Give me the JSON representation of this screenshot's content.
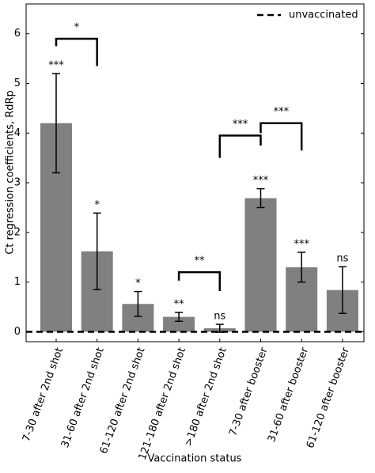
{
  "chart_data": {
    "type": "bar",
    "x_label": "Vaccination status",
    "y_label": "Ct regression coefficients, RdRp",
    "categories": [
      "7-30 after 2nd shot",
      "31-60 after 2nd shot",
      "61-120 after 2nd shot",
      "121-180 after 2nd shot",
      ">180 after 2nd shot",
      "7-30 after booster",
      "31-60 after booster",
      "61-120 after booster"
    ],
    "values": [
      4.2,
      1.62,
      0.56,
      0.3,
      0.07,
      2.69,
      1.3,
      0.84
    ],
    "errors": [
      1.0,
      0.77,
      0.25,
      0.09,
      0.08,
      0.19,
      0.3,
      0.47
    ],
    "significance": [
      "***",
      "*",
      "*",
      "**",
      "ns",
      "***",
      "***",
      "ns"
    ],
    "color": "#808080",
    "brackets": [
      {
        "from": 0,
        "to": 1,
        "y": 5.9,
        "left_end": 5.75,
        "right_end": 5.35,
        "label": "*"
      },
      {
        "from": 3,
        "to": 4,
        "y": 1.2,
        "left_end": 1.03,
        "right_end": 0.82,
        "label": "**"
      },
      {
        "from": 4,
        "to": 5,
        "y": 3.95,
        "left_end": 3.5,
        "right_end": 3.75,
        "label": "***"
      },
      {
        "from": 5,
        "to": 6,
        "y": 4.2,
        "left_end": 4.0,
        "right_end": 3.65,
        "label": "***"
      }
    ],
    "reference_line": {
      "name": "unvaccinated",
      "value": 0
    },
    "legend": "upper right",
    "ylim": [
      -0.2,
      6.6
    ],
    "yticks": [
      0,
      1,
      2,
      3,
      4,
      5,
      6
    ]
  }
}
